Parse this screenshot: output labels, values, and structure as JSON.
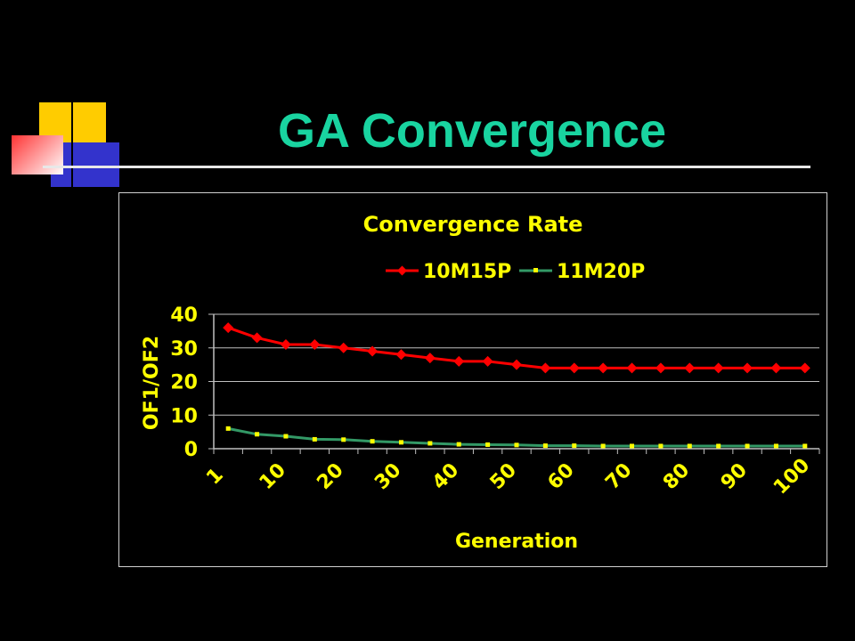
{
  "slide": {
    "title": "GA Convergence",
    "title_color": "#19d4a0",
    "background": "#000000"
  },
  "decoration": {
    "squares": [
      "yellow",
      "blue",
      "red",
      "white"
    ],
    "colors": {
      "yellow": "#ffcc00",
      "blue": "#3333cc",
      "red": "#ff3333",
      "white": "#ffffff"
    }
  },
  "chart_data": {
    "type": "line",
    "title": "Convergence Rate",
    "xlabel": "Generation",
    "ylabel": "OF1/OF2",
    "ylim": [
      0,
      40
    ],
    "yticks": [
      0,
      10,
      20,
      30,
      40
    ],
    "xtick_labels": [
      "1",
      "10",
      "20",
      "30",
      "40",
      "50",
      "60",
      "70",
      "80",
      "90",
      "100"
    ],
    "x": [
      1,
      5,
      10,
      15,
      20,
      25,
      30,
      35,
      40,
      45,
      50,
      55,
      60,
      65,
      70,
      75,
      80,
      85,
      90,
      95,
      100
    ],
    "series": [
      {
        "name": "10M15P",
        "color": "#ff0000",
        "marker_color": "#ff0000",
        "marker": "diamond",
        "values": [
          36,
          33,
          31,
          31,
          30,
          29,
          28,
          27,
          26,
          26,
          25,
          24,
          24,
          24,
          24,
          24,
          24,
          24,
          24,
          24,
          24
        ]
      },
      {
        "name": "11M20P",
        "color": "#339966",
        "marker_color": "#ffff00",
        "marker": "square",
        "values": [
          6,
          4.3,
          3.7,
          2.8,
          2.7,
          2.2,
          1.9,
          1.6,
          1.3,
          1.2,
          1.1,
          0.9,
          0.9,
          0.8,
          0.8,
          0.8,
          0.8,
          0.8,
          0.8,
          0.8,
          0.8
        ]
      }
    ],
    "grid": true,
    "legend_position": "top",
    "text_color": "#ffff00",
    "axis_color": "#c0c0c0"
  }
}
